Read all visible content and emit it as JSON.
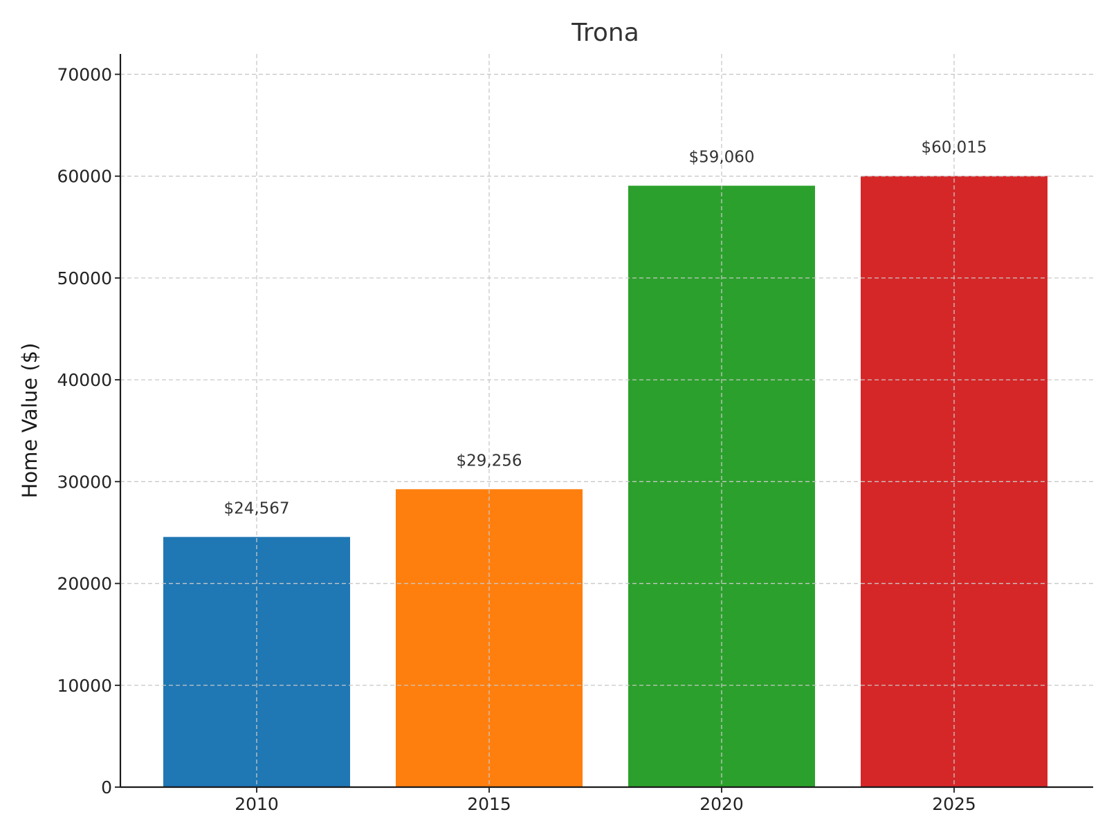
{
  "chart_data": {
    "type": "bar",
    "title": "Trona",
    "xlabel": "",
    "ylabel": "Home Value ($)",
    "categories": [
      "2010",
      "2015",
      "2020",
      "2025"
    ],
    "values": [
      24567,
      29256,
      59060,
      60015
    ],
    "value_labels": [
      "$24,567",
      "$29,256",
      "$59,060",
      "$60,015"
    ],
    "colors": [
      "#1f77b4",
      "#ff7f0e",
      "#2ca02c",
      "#d62728"
    ],
    "ylim": [
      0,
      72000
    ],
    "yticks": [
      0,
      10000,
      20000,
      30000,
      40000,
      50000,
      60000,
      70000
    ],
    "ytick_labels": [
      "0",
      "10000",
      "20000",
      "30000",
      "40000",
      "50000",
      "60000",
      "70000"
    ],
    "grid": true,
    "legend": "none"
  }
}
